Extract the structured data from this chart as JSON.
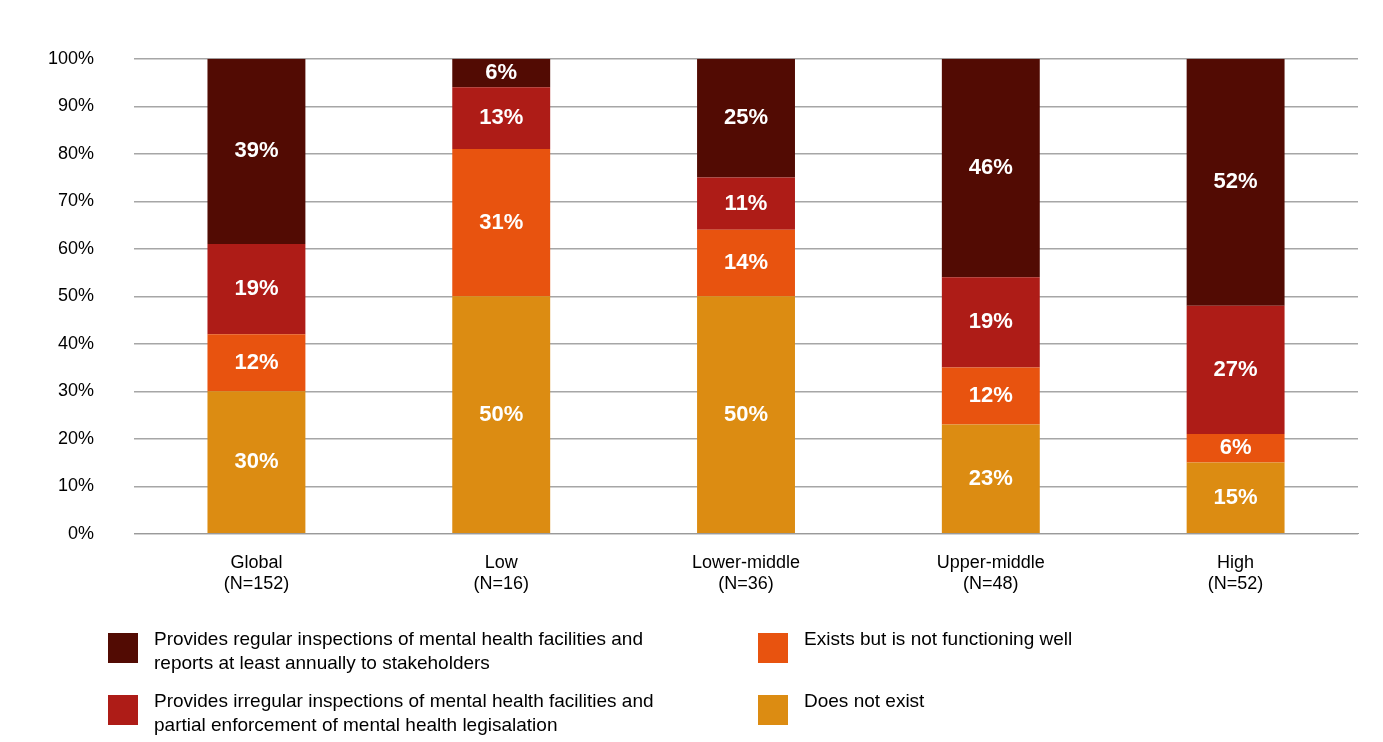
{
  "chart_data": {
    "type": "bar",
    "stacked": true,
    "categories": [
      "Global\n(N=152)",
      "Low\n(N=16)",
      "Lower-middle\n(N=36)",
      "Upper-middle\n(N=48)",
      "High\n(N=52)"
    ],
    "series": [
      {
        "name": "Does not exist",
        "color": "#dc8c12",
        "values": [
          30,
          50,
          50,
          23,
          15
        ],
        "value_labels": [
          "30%",
          "50%",
          "50%",
          "23%",
          "15%"
        ]
      },
      {
        "name": "Exists but is not functioning well",
        "color": "#e8530f",
        "values": [
          12,
          31,
          14,
          12,
          6
        ],
        "value_labels": [
          "12%",
          "31%",
          "14%",
          "12%",
          "6%"
        ]
      },
      {
        "name": "Provides irregular inspections of mental health facilities and partial enforcement of mental health legisalation",
        "color": "#ae1c17",
        "values": [
          19,
          13,
          11,
          19,
          27
        ],
        "value_labels": [
          "19%",
          "13%",
          "11%",
          "19%",
          "27%"
        ]
      },
      {
        "name": "Provides regular inspections of mental health facilities and reports at least annually to stakeholders",
        "color": "#520b03",
        "values": [
          39,
          6,
          25,
          46,
          52
        ],
        "value_labels": [
          "39%",
          "6%",
          "25%",
          "46%",
          "52%"
        ]
      }
    ],
    "ylim": [
      0,
      100
    ],
    "yticks": [
      {
        "value": 0,
        "label": "0%"
      },
      {
        "value": 10,
        "label": "10%"
      },
      {
        "value": 20,
        "label": "20%"
      },
      {
        "value": 30,
        "label": "30%"
      },
      {
        "value": 40,
        "label": "40%"
      },
      {
        "value": 50,
        "label": "50%"
      },
      {
        "value": 60,
        "label": "60%"
      },
      {
        "value": 70,
        "label": "70%"
      },
      {
        "value": 80,
        "label": "80%"
      },
      {
        "value": 90,
        "label": "90%"
      },
      {
        "value": 100,
        "label": "100%"
      }
    ],
    "grid": "y",
    "legend": "bottom"
  }
}
